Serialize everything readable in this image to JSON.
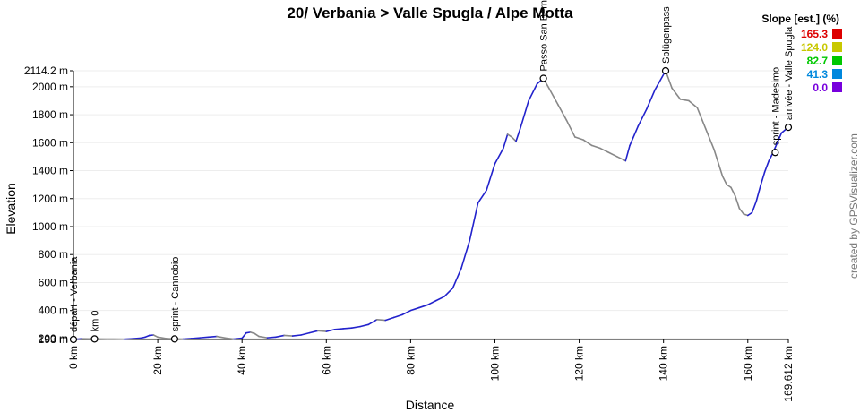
{
  "title": "20/ Verbania > Valle Spugla / Alpe Motta",
  "credit": "created by GPSVisualizer.com",
  "chart_data": {
    "type": "area",
    "xlabel": "Distance",
    "ylabel": "Elevation",
    "x_unit": "km",
    "y_unit": "m",
    "xlim": [
      0,
      169.612
    ],
    "ylim": [
      193,
      2114.2
    ],
    "x_ticks": [
      {
        "value": 0,
        "label": "0 km"
      },
      {
        "value": 20,
        "label": "20 km"
      },
      {
        "value": 40,
        "label": "40 km"
      },
      {
        "value": 60,
        "label": "60 km"
      },
      {
        "value": 80,
        "label": "80 km"
      },
      {
        "value": 100,
        "label": "100 km"
      },
      {
        "value": 120,
        "label": "120 km"
      },
      {
        "value": 140,
        "label": "140 km"
      },
      {
        "value": 160,
        "label": "160 km"
      },
      {
        "value": 169.612,
        "label": "169.612 km"
      }
    ],
    "y_ticks": [
      {
        "value": 193,
        "label": "193 m"
      },
      {
        "value": 200,
        "label": "200 m"
      },
      {
        "value": 400,
        "label": "400 m"
      },
      {
        "value": 600,
        "label": "600 m"
      },
      {
        "value": 800,
        "label": "800 m"
      },
      {
        "value": 1000,
        "label": "1000 m"
      },
      {
        "value": 1200,
        "label": "1200 m"
      },
      {
        "value": 1400,
        "label": "1400 m"
      },
      {
        "value": 1600,
        "label": "1600 m"
      },
      {
        "value": 1800,
        "label": "1800 m"
      },
      {
        "value": 2000,
        "label": "2000 m"
      },
      {
        "value": 2114.2,
        "label": "2114.2 m"
      }
    ],
    "legend": {
      "title": "Slope [est.] (%)",
      "placement": "top-right",
      "entries": [
        {
          "label": "165.3",
          "color": "#dd0000"
        },
        {
          "label": "124.0",
          "color": "#c8c800"
        },
        {
          "label": "82.7",
          "color": "#00c800"
        },
        {
          "label": "41.3",
          "color": "#0088dd"
        },
        {
          "label": "0.0",
          "color": "#7700dd"
        }
      ]
    },
    "line_colors": {
      "climb": "#2222cc",
      "descent": "#888888"
    },
    "profile": [
      [
        0,
        193
      ],
      [
        2,
        198
      ],
      [
        5,
        197
      ],
      [
        8,
        196
      ],
      [
        12,
        195
      ],
      [
        14,
        198
      ],
      [
        16,
        203
      ],
      [
        17,
        210
      ],
      [
        18,
        222
      ],
      [
        19,
        225
      ],
      [
        20,
        210
      ],
      [
        22,
        200
      ],
      [
        24,
        197
      ],
      [
        26,
        196
      ],
      [
        28,
        200
      ],
      [
        30,
        205
      ],
      [
        32,
        210
      ],
      [
        34,
        215
      ],
      [
        36,
        204
      ],
      [
        38,
        196
      ],
      [
        40,
        202
      ],
      [
        41,
        240
      ],
      [
        42,
        245
      ],
      [
        43,
        235
      ],
      [
        44,
        215
      ],
      [
        46,
        205
      ],
      [
        48,
        210
      ],
      [
        50,
        222
      ],
      [
        52,
        218
      ],
      [
        54,
        225
      ],
      [
        56,
        240
      ],
      [
        58,
        255
      ],
      [
        60,
        250
      ],
      [
        62,
        265
      ],
      [
        64,
        270
      ],
      [
        66,
        275
      ],
      [
        68,
        285
      ],
      [
        70,
        300
      ],
      [
        72,
        335
      ],
      [
        74,
        330
      ],
      [
        76,
        350
      ],
      [
        78,
        370
      ],
      [
        80,
        400
      ],
      [
        82,
        420
      ],
      [
        84,
        440
      ],
      [
        86,
        470
      ],
      [
        88,
        500
      ],
      [
        90,
        560
      ],
      [
        92,
        700
      ],
      [
        94,
        900
      ],
      [
        96,
        1170
      ],
      [
        98,
        1260
      ],
      [
        100,
        1450
      ],
      [
        102,
        1560
      ],
      [
        103,
        1660
      ],
      [
        104,
        1640
      ],
      [
        105,
        1610
      ],
      [
        106,
        1700
      ],
      [
        108,
        1900
      ],
      [
        110,
        2020
      ],
      [
        111.5,
        2060
      ],
      [
        113,
        1980
      ],
      [
        115,
        1870
      ],
      [
        117,
        1760
      ],
      [
        119,
        1640
      ],
      [
        121,
        1620
      ],
      [
        123,
        1580
      ],
      [
        125,
        1560
      ],
      [
        127,
        1530
      ],
      [
        129,
        1500
      ],
      [
        131,
        1470
      ],
      [
        132,
        1580
      ],
      [
        134,
        1720
      ],
      [
        136,
        1840
      ],
      [
        138,
        1980
      ],
      [
        140.5,
        2114
      ],
      [
        142,
        1990
      ],
      [
        144,
        1910
      ],
      [
        146,
        1900
      ],
      [
        148,
        1850
      ],
      [
        150,
        1700
      ],
      [
        152,
        1550
      ],
      [
        154,
        1360
      ],
      [
        155,
        1300
      ],
      [
        156,
        1280
      ],
      [
        157,
        1220
      ],
      [
        158,
        1130
      ],
      [
        159,
        1090
      ],
      [
        160,
        1080
      ],
      [
        161,
        1100
      ],
      [
        162,
        1180
      ],
      [
        163,
        1290
      ],
      [
        164,
        1390
      ],
      [
        165,
        1470
      ],
      [
        166,
        1530
      ],
      [
        167,
        1600
      ],
      [
        168,
        1670
      ],
      [
        169.612,
        1710
      ]
    ]
  },
  "waypoints": [
    {
      "name": "départ - Verbania",
      "x": 0,
      "y": 193
    },
    {
      "name": "km 0",
      "x": 5,
      "y": 197
    },
    {
      "name": "sprint - Cannobio",
      "x": 24,
      "y": 197
    },
    {
      "name": "Passo San Bernardino",
      "x": 111.5,
      "y": 2060
    },
    {
      "name": "Splügenpass",
      "x": 140.5,
      "y": 2114
    },
    {
      "name": "sprint - Madesimo",
      "x": 166.5,
      "y": 1530
    },
    {
      "name": "arrivée - Valle Spugla",
      "x": 169.612,
      "y": 1710
    }
  ]
}
